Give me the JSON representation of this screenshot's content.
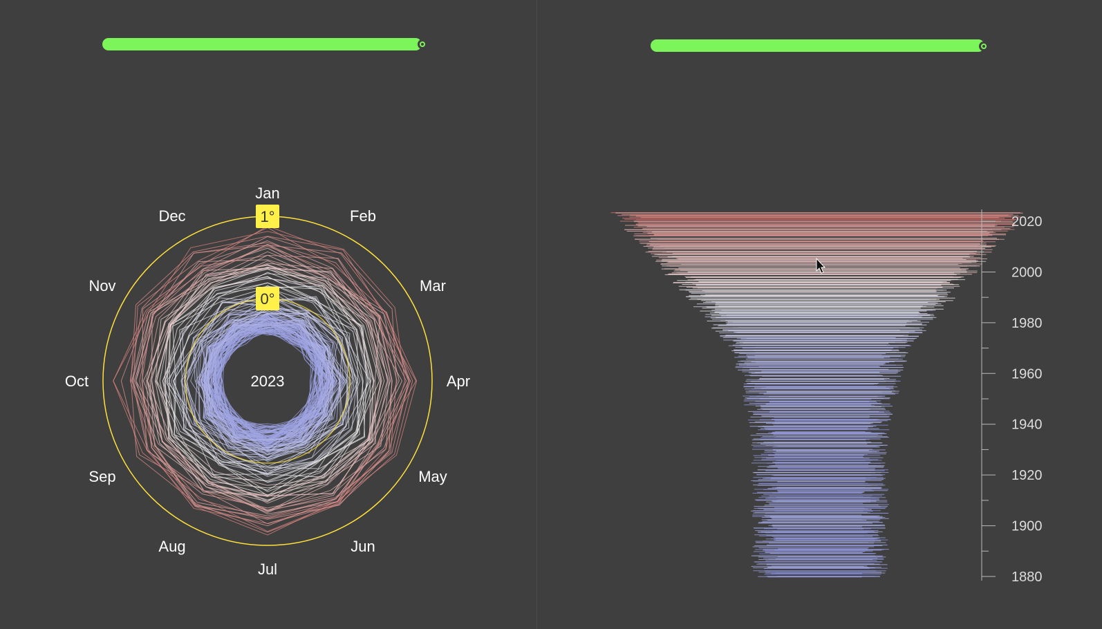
{
  "left_slider": {
    "value": 1.0
  },
  "right_slider": {
    "value": 1.0
  },
  "chart_data": [
    {
      "type": "line",
      "polar": true,
      "center_label": "2023",
      "months": [
        "Jan",
        "Feb",
        "Mar",
        "Apr",
        "May",
        "Jun",
        "Jul",
        "Aug",
        "Sep",
        "Oct",
        "Nov",
        "Dec"
      ],
      "rings": [
        {
          "label": "0°",
          "value": 0
        },
        {
          "label": "1°",
          "value": 1
        }
      ],
      "year_range": [
        1880,
        2023
      ],
      "anomaly_range": [
        -0.6,
        1.1
      ],
      "colors": {
        "cold": "#7078d8",
        "neutral": "#f0f0f0",
        "warm": "#cc3a34",
        "ring": "#ffe23c",
        "ring_label_bg": "#fff04a"
      }
    },
    {
      "type": "bar",
      "orientation": "horizontal",
      "axis_ticks": [
        "2020",
        "2000",
        "1980",
        "1960",
        "1940",
        "1920",
        "1900",
        "1880"
      ],
      "year_range": [
        1880,
        2023
      ],
      "colors": {
        "cold": "#7078d8",
        "neutral": "#f0f0f0",
        "warm": "#cc3a34",
        "axis": "#bbbbbb"
      }
    }
  ]
}
